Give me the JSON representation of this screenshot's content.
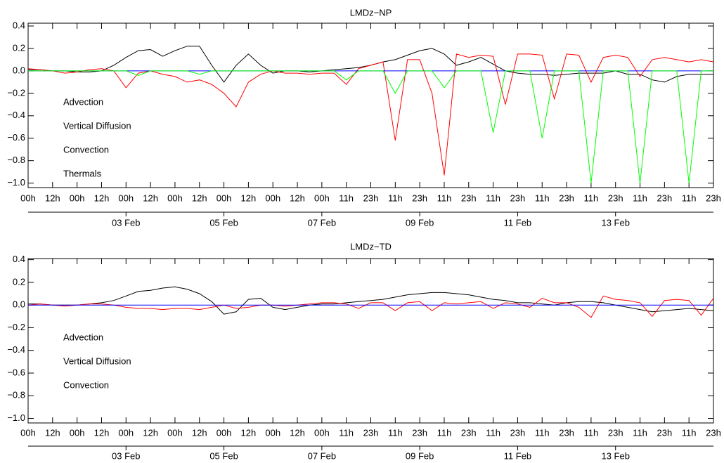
{
  "chart_data": [
    {
      "type": "line",
      "title": "LMDz−NP",
      "x": [
        0,
        6,
        12,
        18,
        24,
        30,
        36,
        42,
        48,
        54,
        60,
        66,
        72,
        78,
        84,
        90,
        96,
        102,
        108,
        114,
        120,
        126,
        132,
        138,
        144,
        150,
        156,
        162,
        168,
        174,
        180,
        186,
        192,
        198,
        204,
        210,
        216,
        222,
        228,
        234,
        240,
        246,
        252,
        258,
        264,
        270,
        276,
        282,
        288,
        294,
        300,
        306,
        312,
        318,
        324,
        330,
        336
      ],
      "xlim": [
        0,
        336
      ],
      "xticks": [
        {
          "value": 0,
          "label": "00h"
        },
        {
          "value": 12,
          "label": "12h"
        },
        {
          "value": 24,
          "label": "00h"
        },
        {
          "value": 36,
          "label": "12h"
        },
        {
          "value": 48,
          "label": "00h"
        },
        {
          "value": 60,
          "label": "12h"
        },
        {
          "value": 72,
          "label": "00h"
        },
        {
          "value": 84,
          "label": "12h"
        },
        {
          "value": 96,
          "label": "00h"
        },
        {
          "value": 108,
          "label": "12h"
        },
        {
          "value": 120,
          "label": "00h"
        },
        {
          "value": 132,
          "label": "12h"
        },
        {
          "value": 144,
          "label": "00h"
        },
        {
          "value": 156,
          "label": "11h"
        },
        {
          "value": 168,
          "label": "23h"
        },
        {
          "value": 180,
          "label": "11h"
        },
        {
          "value": 192,
          "label": "23h"
        },
        {
          "value": 204,
          "label": "11h"
        },
        {
          "value": 216,
          "label": "23h"
        },
        {
          "value": 228,
          "label": "11h"
        },
        {
          "value": 240,
          "label": "23h"
        },
        {
          "value": 252,
          "label": "11h"
        },
        {
          "value": 264,
          "label": "23h"
        },
        {
          "value": 276,
          "label": "11h"
        },
        {
          "value": 288,
          "label": "23h"
        },
        {
          "value": 300,
          "label": "11h"
        },
        {
          "value": 312,
          "label": "23h"
        },
        {
          "value": 324,
          "label": "11h"
        },
        {
          "value": 336,
          "label": "23h"
        }
      ],
      "date_ticks": [
        {
          "value": 48,
          "label": "03 Feb"
        },
        {
          "value": 96,
          "label": "05 Feb"
        },
        {
          "value": 144,
          "label": "07 Feb"
        },
        {
          "value": 192,
          "label": "09 Feb"
        },
        {
          "value": 240,
          "label": "11 Feb"
        },
        {
          "value": 288,
          "label": "13 Feb"
        }
      ],
      "ylim": [
        -1.04,
        0.425
      ],
      "yticks": [
        {
          "value": -1.0,
          "label": "−1.0"
        },
        {
          "value": -0.8,
          "label": "−0.8"
        },
        {
          "value": -0.6,
          "label": "−0.6"
        },
        {
          "value": -0.4,
          "label": "−0.4"
        },
        {
          "value": -0.2,
          "label": "−0.2"
        },
        {
          "value": 0,
          "label": "0.0"
        },
        0.2,
        0.4
      ],
      "series": [
        {
          "name": "Advection",
          "color": "#000000",
          "values": [
            0.01,
            0.01,
            0.0,
            0.0,
            -0.01,
            -0.01,
            0.0,
            0.05,
            0.12,
            0.18,
            0.19,
            0.13,
            0.18,
            0.22,
            0.22,
            0.05,
            -0.1,
            0.05,
            0.15,
            0.05,
            -0.02,
            0.0,
            0.0,
            -0.01,
            0.0,
            0.01,
            0.02,
            0.03,
            0.05,
            0.08,
            0.1,
            0.14,
            0.18,
            0.2,
            0.15,
            0.05,
            0.08,
            0.12,
            0.06,
            0.0,
            -0.02,
            -0.03,
            -0.03,
            -0.04,
            -0.03,
            -0.02,
            -0.02,
            -0.02,
            0.0,
            -0.03,
            -0.03,
            -0.08,
            -0.1,
            -0.05,
            -0.03,
            -0.03,
            -0.03
          ]
        },
        {
          "name": "Vertical Diffusion",
          "color": "#ff0000",
          "values": [
            0.02,
            0.01,
            0.0,
            -0.02,
            -0.01,
            0.01,
            0.02,
            0.0,
            -0.15,
            -0.02,
            0.0,
            -0.03,
            -0.05,
            -0.1,
            -0.08,
            -0.12,
            -0.2,
            -0.32,
            -0.1,
            -0.03,
            0.0,
            -0.02,
            -0.02,
            -0.03,
            -0.02,
            -0.02,
            -0.12,
            0.02,
            0.05,
            0.08,
            -0.62,
            0.1,
            0.1,
            -0.2,
            -0.93,
            0.15,
            0.12,
            0.14,
            0.13,
            -0.3,
            0.15,
            0.15,
            0.14,
            -0.25,
            0.15,
            0.14,
            -0.1,
            0.12,
            0.14,
            0.12,
            -0.05,
            0.1,
            0.12,
            0.1,
            0.08,
            0.1,
            0.08
          ]
        },
        {
          "name": "Convection",
          "color": "#0000ff",
          "values": [
            0,
            0,
            0,
            0,
            0,
            0,
            0,
            0,
            0,
            0,
            0,
            0,
            0,
            0,
            0,
            0,
            0,
            0,
            0,
            0,
            0,
            0,
            0,
            0,
            0,
            0,
            0,
            0,
            0,
            0,
            0,
            0,
            0,
            0,
            0,
            0,
            0,
            0,
            0,
            0,
            0,
            0,
            0,
            0,
            0,
            0,
            0,
            0,
            0,
            0,
            0,
            0,
            0,
            0,
            0,
            0,
            0
          ]
        },
        {
          "name": "Thermals",
          "color": "#00ff00",
          "values": [
            0,
            0,
            0,
            0,
            0,
            0,
            0,
            0,
            0,
            -0.04,
            0,
            0,
            0,
            0,
            -0.03,
            0,
            0,
            0,
            0,
            0,
            0,
            0,
            0,
            0,
            0,
            0,
            -0.08,
            0,
            0,
            0,
            -0.2,
            0,
            0,
            0,
            -0.15,
            0,
            0,
            0,
            -0.55,
            0,
            0,
            0,
            -0.6,
            0,
            0,
            0,
            -1.0,
            0,
            0,
            0,
            -1.0,
            0,
            0,
            0,
            -1.0,
            0,
            0
          ]
        }
      ]
    },
    {
      "type": "line",
      "title": "LMDz−TD",
      "x": [
        0,
        6,
        12,
        18,
        24,
        30,
        36,
        42,
        48,
        54,
        60,
        66,
        72,
        78,
        84,
        90,
        96,
        102,
        108,
        114,
        120,
        126,
        132,
        138,
        144,
        150,
        156,
        162,
        168,
        174,
        180,
        186,
        192,
        198,
        204,
        210,
        216,
        222,
        228,
        234,
        240,
        246,
        252,
        258,
        264,
        270,
        276,
        282,
        288,
        294,
        300,
        306,
        312,
        318,
        324,
        330,
        336
      ],
      "xlim": [
        0,
        336
      ],
      "xticks": [
        {
          "value": 0,
          "label": "00h"
        },
        {
          "value": 12,
          "label": "12h"
        },
        {
          "value": 24,
          "label": "00h"
        },
        {
          "value": 36,
          "label": "12h"
        },
        {
          "value": 48,
          "label": "00h"
        },
        {
          "value": 60,
          "label": "12h"
        },
        {
          "value": 72,
          "label": "00h"
        },
        {
          "value": 84,
          "label": "12h"
        },
        {
          "value": 96,
          "label": "00h"
        },
        {
          "value": 108,
          "label": "12h"
        },
        {
          "value": 120,
          "label": "00h"
        },
        {
          "value": 132,
          "label": "12h"
        },
        {
          "value": 144,
          "label": "00h"
        },
        {
          "value": 156,
          "label": "11h"
        },
        {
          "value": 168,
          "label": "23h"
        },
        {
          "value": 180,
          "label": "11h"
        },
        {
          "value": 192,
          "label": "23h"
        },
        {
          "value": 204,
          "label": "11h"
        },
        {
          "value": 216,
          "label": "23h"
        },
        {
          "value": 228,
          "label": "11h"
        },
        {
          "value": 240,
          "label": "23h"
        },
        {
          "value": 252,
          "label": "11h"
        },
        {
          "value": 264,
          "label": "23h"
        },
        {
          "value": 276,
          "label": "11h"
        },
        {
          "value": 288,
          "label": "23h"
        },
        {
          "value": 300,
          "label": "11h"
        },
        {
          "value": 312,
          "label": "23h"
        },
        {
          "value": 324,
          "label": "11h"
        },
        {
          "value": 336,
          "label": "23h"
        }
      ],
      "date_ticks": [
        {
          "value": 48,
          "label": "03 Feb"
        },
        {
          "value": 96,
          "label": "05 Feb"
        },
        {
          "value": 144,
          "label": "07 Feb"
        },
        {
          "value": 192,
          "label": "09 Feb"
        },
        {
          "value": 240,
          "label": "11 Feb"
        },
        {
          "value": 288,
          "label": "13 Feb"
        }
      ],
      "ylim": [
        -1.04,
        0.41
      ],
      "yticks": [
        {
          "value": -1.0,
          "label": "−1.0"
        },
        {
          "value": -0.8,
          "label": "−0.8"
        },
        {
          "value": -0.6,
          "label": "−0.6"
        },
        {
          "value": -0.4,
          "label": "−0.4"
        },
        {
          "value": -0.2,
          "label": "−0.2"
        },
        {
          "value": 0,
          "label": "0.0"
        },
        0.2,
        0.4
      ],
      "series": [
        {
          "name": "Advection",
          "color": "#000000",
          "values": [
            0.01,
            0.01,
            0.0,
            0.0,
            0.0,
            0.01,
            0.02,
            0.04,
            0.08,
            0.12,
            0.13,
            0.15,
            0.16,
            0.14,
            0.1,
            0.03,
            -0.08,
            -0.06,
            0.05,
            0.06,
            -0.02,
            -0.04,
            -0.02,
            0.0,
            0.01,
            0.01,
            0.02,
            0.03,
            0.04,
            0.05,
            0.07,
            0.09,
            0.1,
            0.11,
            0.11,
            0.1,
            0.09,
            0.07,
            0.05,
            0.04,
            0.02,
            0.02,
            0.01,
            0.0,
            0.02,
            0.03,
            0.03,
            0.02,
            0.0,
            -0.02,
            -0.04,
            -0.06,
            -0.05,
            -0.04,
            -0.03,
            -0.04,
            -0.05
          ]
        },
        {
          "name": "Vertical Diffusion",
          "color": "#ff0000",
          "values": [
            0.0,
            0.01,
            0.0,
            -0.01,
            0.0,
            0.01,
            0.01,
            0.0,
            -0.02,
            -0.03,
            -0.03,
            -0.04,
            -0.03,
            -0.03,
            -0.04,
            -0.02,
            0.0,
            -0.03,
            -0.02,
            0.0,
            0.0,
            -0.01,
            0.0,
            0.01,
            0.02,
            0.02,
            0.01,
            -0.03,
            0.02,
            0.02,
            -0.05,
            0.02,
            0.03,
            -0.05,
            0.02,
            0.01,
            0.02,
            0.03,
            -0.03,
            0.02,
            0.01,
            -0.02,
            0.06,
            0.02,
            0.02,
            -0.02,
            -0.11,
            0.08,
            0.05,
            0.04,
            0.02,
            -0.1,
            0.04,
            0.05,
            0.04,
            -0.09,
            0.06
          ]
        },
        {
          "name": "Convection",
          "color": "#0000ff",
          "values": [
            0,
            0,
            0,
            0,
            0,
            0,
            0,
            0,
            0,
            0,
            0,
            0,
            0,
            0,
            0,
            0,
            0,
            0,
            0,
            0,
            0,
            0,
            0,
            0,
            0,
            0,
            0,
            0,
            0,
            0,
            0,
            0,
            0,
            0,
            0,
            0,
            0,
            0,
            0,
            0,
            0,
            0,
            0,
            0,
            0,
            0,
            0,
            0,
            0,
            0,
            0,
            0,
            0,
            0,
            0,
            0,
            0
          ]
        }
      ]
    }
  ]
}
